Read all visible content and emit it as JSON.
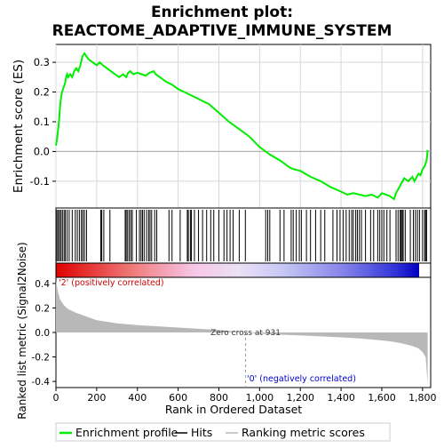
{
  "chart_data": {
    "type": "line",
    "title_line1": "Enrichment plot:",
    "title_line2": "REACTOME_ADAPTIVE_IMMUNE_SYSTEM",
    "es_ylabel": "Enrichment score (ES)",
    "metric_ylabel": "Ranked list metric (Signal2Noise)",
    "xlabel": "Rank in Ordered Dataset",
    "x_ticks": [
      0,
      200,
      400,
      600,
      800,
      1000,
      1200,
      1400,
      1600,
      1800
    ],
    "x_tick_labels": [
      "0",
      "200",
      "400",
      "600",
      "800",
      "1,000",
      "1,200",
      "1,400",
      "1,600",
      "1,800"
    ],
    "xlim": [
      0,
      1840
    ],
    "es_ylim": [
      -0.19,
      0.36
    ],
    "es_ticks": [
      -0.1,
      0.0,
      0.1,
      0.2,
      0.3
    ],
    "es_tick_labels": [
      "-0.1",
      "0.0",
      "0.1",
      "0.2",
      "0.3"
    ],
    "metric_ylim": [
      -0.45,
      0.45
    ],
    "metric_ticks": [
      -0.4,
      -0.2,
      0.0,
      0.2,
      0.4
    ],
    "metric_tick_labels": [
      "-0.4",
      "-0.2",
      "0.0",
      "0.2",
      "0.4"
    ],
    "zero_cross_label": "Zero cross at 931",
    "zero_cross_rank": 931,
    "pos_label": "'2' (positively correlated)",
    "neg_label": "'0' (negatively correlated)",
    "legend": [
      "Enrichment profile",
      "Hits",
      "Ranking metric scores"
    ],
    "colors": {
      "enrichment": "#00ee00",
      "hits": "#000000",
      "metric_fill": "#b8b8b8",
      "pos_label": "#cc0000",
      "neg_label": "#0000cc"
    },
    "series": [
      {
        "name": "Enrichment profile",
        "x": [
          0,
          5,
          10,
          15,
          20,
          25,
          30,
          35,
          40,
          45,
          50,
          55,
          60,
          70,
          80,
          90,
          100,
          110,
          120,
          130,
          140,
          150,
          160,
          180,
          200,
          215,
          230,
          250,
          270,
          290,
          310,
          330,
          345,
          355,
          365,
          380,
          400,
          420,
          440,
          460,
          480,
          490,
          510,
          540,
          570,
          600,
          630,
          660,
          690,
          720,
          750,
          800,
          850,
          900,
          950,
          1000,
          1050,
          1100,
          1150,
          1170,
          1200,
          1250,
          1300,
          1350,
          1400,
          1430,
          1460,
          1490,
          1520,
          1550,
          1580,
          1600,
          1620,
          1640,
          1660,
          1670,
          1690,
          1710,
          1730,
          1750,
          1760,
          1780,
          1790,
          1800,
          1810,
          1820,
          1825
        ],
        "values": [
          0.02,
          0.04,
          0.07,
          0.1,
          0.15,
          0.18,
          0.2,
          0.21,
          0.22,
          0.23,
          0.25,
          0.26,
          0.25,
          0.26,
          0.25,
          0.27,
          0.28,
          0.27,
          0.29,
          0.32,
          0.33,
          0.32,
          0.31,
          0.3,
          0.29,
          0.3,
          0.29,
          0.28,
          0.27,
          0.26,
          0.25,
          0.26,
          0.25,
          0.265,
          0.27,
          0.26,
          0.265,
          0.26,
          0.255,
          0.265,
          0.27,
          0.26,
          0.25,
          0.235,
          0.225,
          0.21,
          0.2,
          0.19,
          0.18,
          0.17,
          0.16,
          0.13,
          0.1,
          0.075,
          0.05,
          0.015,
          -0.01,
          -0.03,
          -0.055,
          -0.06,
          -0.065,
          -0.085,
          -0.1,
          -0.12,
          -0.135,
          -0.145,
          -0.14,
          -0.145,
          -0.15,
          -0.145,
          -0.155,
          -0.14,
          -0.145,
          -0.15,
          -0.16,
          -0.14,
          -0.115,
          -0.09,
          -0.1,
          -0.085,
          -0.1,
          -0.075,
          -0.08,
          -0.06,
          -0.05,
          -0.03,
          0.005
        ]
      },
      {
        "name": "Ranking metric scores",
        "x": [
          0,
          10,
          20,
          40,
          60,
          100,
          150,
          200,
          300,
          400,
          500,
          600,
          700,
          800,
          931,
          1000,
          1100,
          1200,
          1300,
          1400,
          1500,
          1600,
          1650,
          1700,
          1750,
          1780,
          1800,
          1815,
          1825
        ],
        "values": [
          0.42,
          0.33,
          0.27,
          0.22,
          0.19,
          0.16,
          0.13,
          0.1,
          0.075,
          0.06,
          0.05,
          0.04,
          0.03,
          0.02,
          0.0,
          -0.01,
          -0.018,
          -0.025,
          -0.032,
          -0.04,
          -0.05,
          -0.065,
          -0.075,
          -0.09,
          -0.11,
          -0.13,
          -0.16,
          -0.2,
          -0.42
        ]
      }
    ],
    "hit_ranks": [
      5,
      12,
      18,
      25,
      32,
      40,
      46,
      55,
      65,
      80,
      95,
      105,
      115,
      125,
      132,
      140,
      150,
      220,
      225,
      235,
      265,
      340,
      345,
      352,
      360,
      368,
      375,
      395,
      410,
      418,
      425,
      433,
      445,
      455,
      462,
      470,
      485,
      495,
      555,
      570,
      610,
      645,
      650,
      660,
      665,
      680,
      700,
      720,
      740,
      760,
      775,
      800,
      825,
      840,
      855,
      870,
      900,
      930,
      1030,
      1040,
      1050,
      1100,
      1120,
      1155,
      1165,
      1180,
      1195,
      1205,
      1230,
      1250,
      1275,
      1300,
      1320,
      1360,
      1380,
      1395,
      1410,
      1425,
      1440,
      1452,
      1460,
      1472,
      1480,
      1490,
      1500,
      1520,
      1545,
      1560,
      1580,
      1590,
      1600,
      1610,
      1625,
      1640,
      1670,
      1680,
      1690,
      1695,
      1700,
      1705,
      1715,
      1740,
      1755,
      1765,
      1775,
      1785,
      1800,
      1810,
      1815,
      1820
    ]
  }
}
